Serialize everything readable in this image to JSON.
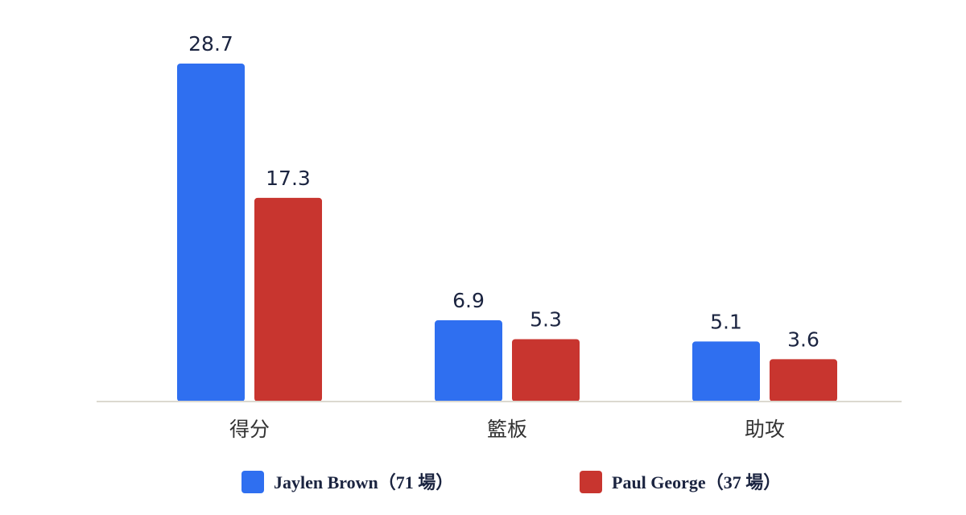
{
  "chart_data": {
    "type": "bar",
    "categories": [
      "得分",
      "籃板",
      "助攻"
    ],
    "series": [
      {
        "name": "Jaylen Brown（71 場）",
        "color": "#2f6ff0",
        "values": [
          28.7,
          6.9,
          5.1
        ]
      },
      {
        "name": "Paul George（37 場）",
        "color": "#c8352f",
        "values": [
          17.3,
          5.3,
          3.6
        ]
      }
    ],
    "ylim": [
      0,
      28.7
    ]
  }
}
